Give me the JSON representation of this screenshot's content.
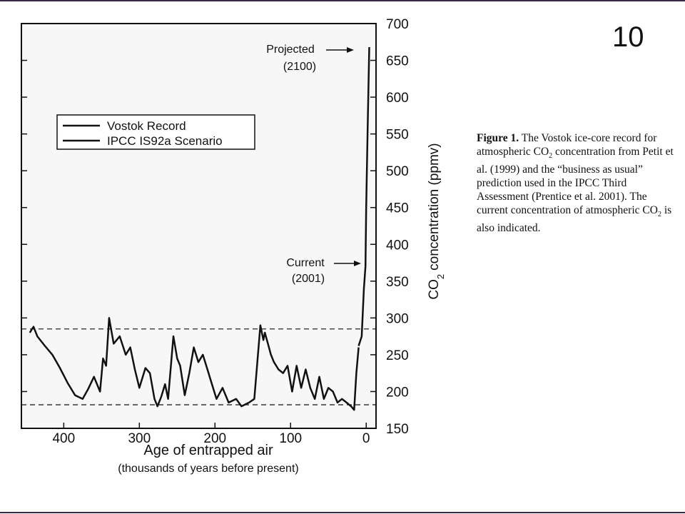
{
  "slide_number": "10",
  "caption": [
    "Figure 1.",
    "The Vostok ice-core record for atmospheric CO",
    "2",
    "concentration from Petit et al. (1999) and the “business as usual” prediction used in the IPCC Third Assessment (Prentice et al. 2001). The current concentration of atmospheric CO",
    "2",
    "is also indicated."
  ],
  "chart_data": {
    "type": "line",
    "x_label": "Age of entrapped air",
    "x_sublabel": "(thousands of years before present)",
    "y_label": [
      "CO",
      "2",
      "concentration (ppmv)"
    ],
    "xlim": [
      456,
      -13
    ],
    "xticks": [
      400,
      300,
      200,
      100,
      0
    ],
    "ylim": [
      150,
      700
    ],
    "yticks": [
      150,
      200,
      250,
      300,
      350,
      400,
      450,
      500,
      550,
      600,
      650,
      700
    ],
    "hlines": [
      285,
      182
    ],
    "annotations": [
      {
        "text": [
          "Projected",
          "(2100)"
        ]
      },
      {
        "text": [
          "Current",
          "(2001)"
        ]
      }
    ],
    "series": [
      {
        "name": "Vostok Record",
        "color": "#111111",
        "x": [
          445,
          440,
          435,
          425,
          415,
          405,
          395,
          385,
          375,
          368,
          360,
          352,
          348,
          344,
          340,
          334,
          326,
          318,
          312,
          306,
          300,
          292,
          286,
          280,
          276,
          271,
          266,
          262,
          255,
          250,
          246,
          240,
          234,
          228,
          222,
          216,
          210,
          204,
          198,
          190,
          182,
          172,
          165,
          155,
          148,
          140,
          136,
          134,
          130,
          126,
          122,
          116,
          110,
          104,
          98,
          92,
          86,
          80,
          74,
          68,
          62,
          56,
          50,
          44,
          38,
          32,
          26,
          20,
          16,
          13,
          10
        ],
        "values": [
          280,
          288,
          275,
          262,
          250,
          232,
          212,
          195,
          190,
          203,
          220,
          200,
          245,
          235,
          300,
          265,
          275,
          250,
          260,
          230,
          205,
          232,
          225,
          190,
          180,
          193,
          210,
          190,
          275,
          245,
          235,
          195,
          225,
          260,
          240,
          250,
          230,
          210,
          190,
          205,
          185,
          190,
          180,
          185,
          190,
          290,
          270,
          280,
          265,
          250,
          240,
          230,
          225,
          235,
          200,
          235,
          205,
          230,
          205,
          190,
          220,
          190,
          205,
          200,
          185,
          190,
          185,
          180,
          175,
          225,
          260
        ]
      },
      {
        "name": "IPCC IS92a Scenario",
        "color": "#111111",
        "x": [
          10,
          6,
          3,
          1,
          0,
          -2,
          -4
        ],
        "values": [
          262,
          275,
          340,
          370,
          450,
          560,
          668
        ]
      }
    ]
  }
}
